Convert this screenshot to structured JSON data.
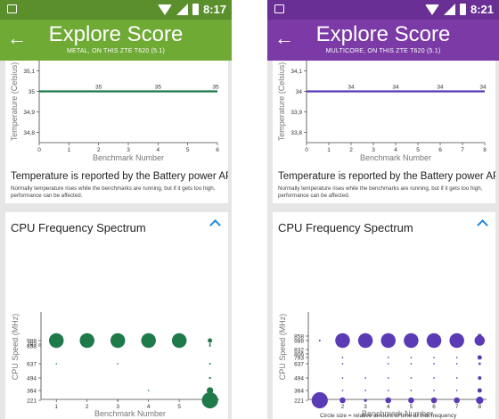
{
  "left": {
    "status_time": "8:17",
    "accent": "#6faa35",
    "title": "Explore Score",
    "subtitle": "METAL, ON THIS ZTE T620 (5.1)",
    "temp_card": {
      "heading": "Temperature is reported by the Battery power API.",
      "note": "Normally temperature rises while the benchmarks are running, but if it gets too high, performance can be affected."
    },
    "cpu_card": {
      "heading": "CPU Frequency Spectrum"
    }
  },
  "right": {
    "status_time": "8:21",
    "accent": "#7b3aa6",
    "title": "Explore Score",
    "subtitle": "MULTICORE, ON THIS ZTE T620 (5.1)",
    "temp_card": {
      "heading": "Temperature is reported by the Battery power API.",
      "note": "Normally temperature rises while the benchmarks are running, but if it gets too high, performance can be affected."
    },
    "cpu_card": {
      "heading": "CPU Frequency Spectrum",
      "footnote": "Circle size = relative amount of time at that frequency"
    }
  },
  "chart_data": [
    {
      "type": "line",
      "panel": "left",
      "color": "#1f7a4a",
      "xlabel": "Benchmark Number",
      "ylabel": "Temperature (Celsius)",
      "x_ticks": [
        "0",
        "1",
        "2",
        "3",
        "4",
        "5",
        "6"
      ],
      "y_ticks": [
        "35,1",
        "35",
        "34,9",
        "34,8"
      ],
      "xlim": [
        0,
        6
      ],
      "ylim": [
        34.75,
        35.15
      ],
      "y_tick_values": [
        35.1,
        35,
        34.9,
        34.8
      ],
      "x": [
        0,
        1,
        2,
        3,
        4,
        5,
        6
      ],
      "values": [
        35,
        35,
        35,
        35,
        35,
        35,
        35
      ],
      "point_labels": [
        {
          "x": 2,
          "label": "35"
        },
        {
          "x": 4,
          "label": "35"
        },
        {
          "x": 6,
          "label": "35"
        }
      ]
    },
    {
      "type": "line",
      "panel": "right",
      "color": "#5b3bb5",
      "xlabel": "Benchmark Number",
      "ylabel": "Temperature (Celsius)",
      "x_ticks": [
        "0",
        "1",
        "2",
        "3",
        "4",
        "5",
        "6",
        "7",
        "8"
      ],
      "y_ticks": [
        "34,1",
        "34",
        "33,9",
        "33,8"
      ],
      "xlim": [
        0,
        8
      ],
      "ylim": [
        33.75,
        34.15
      ],
      "y_tick_values": [
        34.1,
        34,
        33.9,
        33.8
      ],
      "x": [
        0,
        1,
        2,
        3,
        4,
        5,
        6,
        7,
        8
      ],
      "values": [
        34,
        34,
        34,
        34,
        34,
        34,
        34,
        34,
        34
      ],
      "point_labels": [
        {
          "x": 2,
          "label": "34"
        },
        {
          "x": 4,
          "label": "34"
        },
        {
          "x": 6,
          "label": "34"
        },
        {
          "x": 8,
          "label": "34"
        }
      ]
    },
    {
      "type": "scatter",
      "panel": "left",
      "color": "#1f7a4a",
      "xlabel": "Benchmark Number",
      "ylabel": "CPU Speed (MHz)",
      "x_ticks": [
        "1",
        "2",
        "3",
        "4",
        "5",
        "6"
      ],
      "y_ticks": [
        "988",
        "858",
        "793",
        "637",
        "494",
        "364",
        "221"
      ],
      "xlim": [
        0.5,
        6.3
      ],
      "points": [
        {
          "x": 1,
          "y": "988",
          "size": 5
        },
        {
          "x": 1,
          "y": "793",
          "size": 0.3
        },
        {
          "x": 1,
          "y": "637",
          "size": 0.3
        },
        {
          "x": 2,
          "y": "988",
          "size": 5
        },
        {
          "x": 3,
          "y": "988",
          "size": 5
        },
        {
          "x": 3,
          "y": "858",
          "size": 0.3
        },
        {
          "x": 3,
          "y": "637",
          "size": 0.3
        },
        {
          "x": 3,
          "y": "221",
          "size": 0.3
        },
        {
          "x": 4,
          "y": "988",
          "size": 5
        },
        {
          "x": 4,
          "y": "364",
          "size": 0.3
        },
        {
          "x": 5,
          "y": "988",
          "size": 5
        },
        {
          "x": 5,
          "y": "793",
          "size": 0.3
        },
        {
          "x": 6,
          "y": "988",
          "size": 1.5
        },
        {
          "x": 6,
          "y": "858",
          "size": 0.6
        },
        {
          "x": 6,
          "y": "793",
          "size": 0.6
        },
        {
          "x": 6,
          "y": "637",
          "size": 0.6
        },
        {
          "x": 6,
          "y": "494",
          "size": 0.7
        },
        {
          "x": 6,
          "y": "364",
          "size": 2.2
        },
        {
          "x": 6,
          "y": "221",
          "size": 5.5
        }
      ]
    },
    {
      "type": "scatter",
      "panel": "right",
      "color": "#5b3bb5",
      "xlabel": "Benchmark Number",
      "ylabel": "CPU Speed (MHz)",
      "x_ticks": [
        "1",
        "2",
        "3",
        "4",
        "5",
        "6",
        "7",
        "8"
      ],
      "y_ticks": [
        "988",
        "858",
        "832",
        "806",
        "793",
        "637",
        "494",
        "364",
        "221"
      ],
      "xlim": [
        0.5,
        8.3
      ],
      "points": [
        {
          "x": 1,
          "y": "988",
          "size": 0.6
        },
        {
          "x": 1,
          "y": "221",
          "size": 5.5
        },
        {
          "x": 2,
          "y": "988",
          "size": 5
        },
        {
          "x": 2,
          "y": "793",
          "size": 0.5
        },
        {
          "x": 2,
          "y": "637",
          "size": 0.5
        },
        {
          "x": 2,
          "y": "494",
          "size": 0.5
        },
        {
          "x": 2,
          "y": "364",
          "size": 0.5
        },
        {
          "x": 2,
          "y": "221",
          "size": 2
        },
        {
          "x": 3,
          "y": "988",
          "size": 5
        },
        {
          "x": 3,
          "y": "494",
          "size": 0.5
        },
        {
          "x": 3,
          "y": "364",
          "size": 0.5
        },
        {
          "x": 3,
          "y": "221",
          "size": 1
        },
        {
          "x": 4,
          "y": "988",
          "size": 5
        },
        {
          "x": 4,
          "y": "793",
          "size": 0.5
        },
        {
          "x": 4,
          "y": "637",
          "size": 0.5
        },
        {
          "x": 4,
          "y": "494",
          "size": 0.5
        },
        {
          "x": 4,
          "y": "364",
          "size": 0.5
        },
        {
          "x": 4,
          "y": "221",
          "size": 2
        },
        {
          "x": 5,
          "y": "988",
          "size": 5
        },
        {
          "x": 5,
          "y": "793",
          "size": 0.5
        },
        {
          "x": 5,
          "y": "637",
          "size": 0.5
        },
        {
          "x": 5,
          "y": "494",
          "size": 0.5
        },
        {
          "x": 5,
          "y": "364",
          "size": 0.5
        },
        {
          "x": 5,
          "y": "221",
          "size": 2
        },
        {
          "x": 6,
          "y": "988",
          "size": 5
        },
        {
          "x": 6,
          "y": "793",
          "size": 0.5
        },
        {
          "x": 6,
          "y": "637",
          "size": 0.5
        },
        {
          "x": 6,
          "y": "494",
          "size": 0.5
        },
        {
          "x": 6,
          "y": "364",
          "size": 0.5
        },
        {
          "x": 6,
          "y": "221",
          "size": 2
        },
        {
          "x": 7,
          "y": "988",
          "size": 5
        },
        {
          "x": 7,
          "y": "793",
          "size": 0.5
        },
        {
          "x": 7,
          "y": "637",
          "size": 0.5
        },
        {
          "x": 7,
          "y": "494",
          "size": 0.5
        },
        {
          "x": 7,
          "y": "364",
          "size": 0.5
        },
        {
          "x": 7,
          "y": "221",
          "size": 2
        },
        {
          "x": 8,
          "y": "988",
          "size": 3.5
        },
        {
          "x": 8,
          "y": "858",
          "size": 1.5
        },
        {
          "x": 8,
          "y": "793",
          "size": 1.5
        },
        {
          "x": 8,
          "y": "637",
          "size": 0.8
        },
        {
          "x": 8,
          "y": "494",
          "size": 1.2
        },
        {
          "x": 8,
          "y": "364",
          "size": 1.5
        },
        {
          "x": 8,
          "y": "221",
          "size": 2.5
        }
      ]
    }
  ]
}
